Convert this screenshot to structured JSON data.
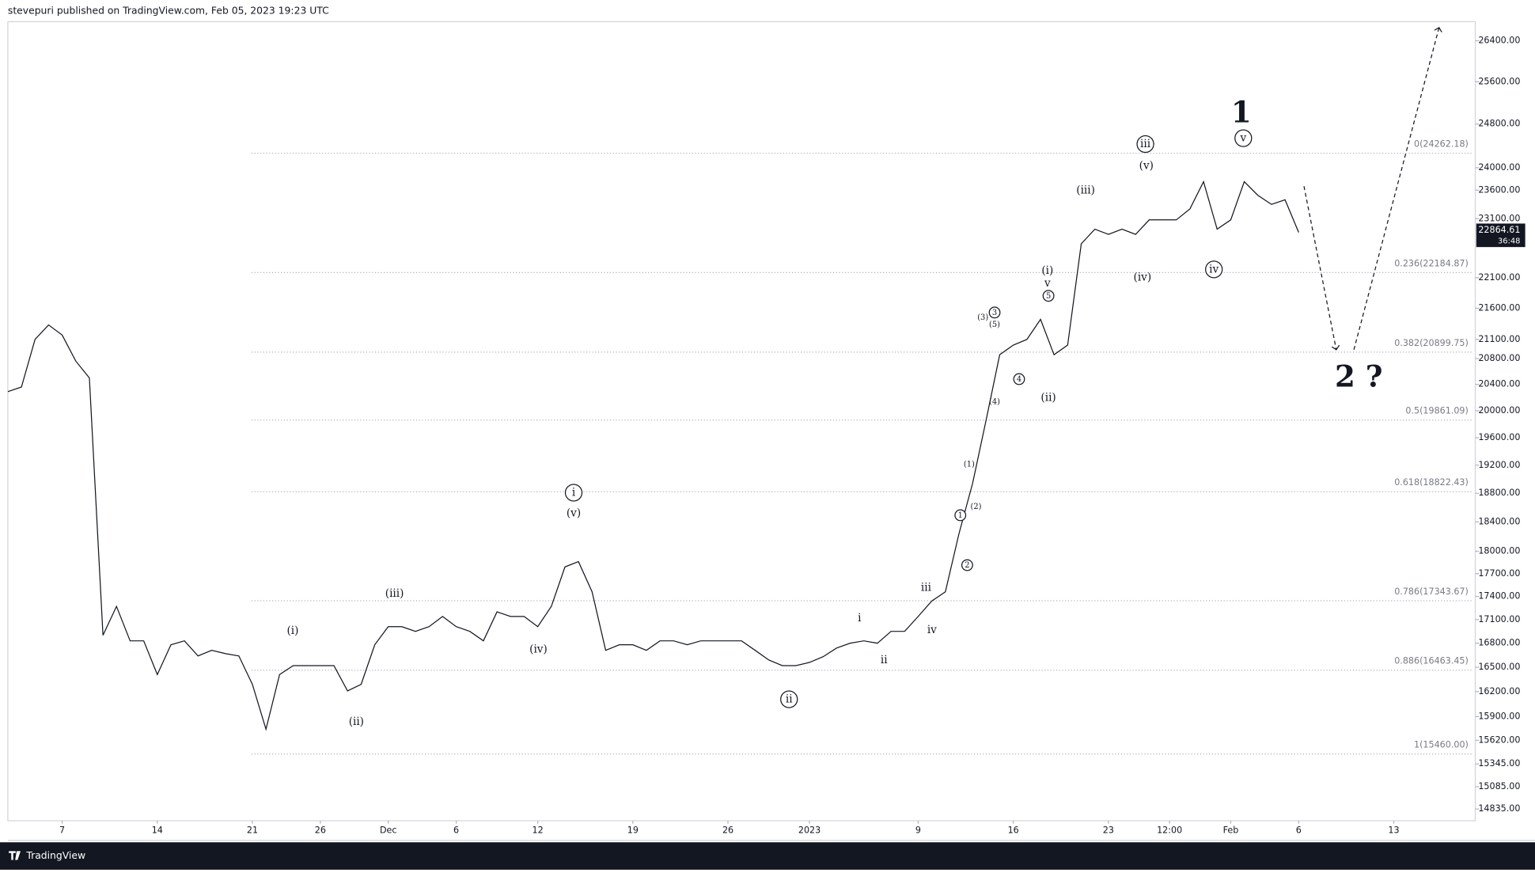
{
  "chart_data": {
    "type": "line",
    "title": "stevepuri published on TradingView.com, Feb 05, 2023 19:23 UTC",
    "source": "TradingView",
    "color": "#131722",
    "log_scale": true,
    "x": [
      -4,
      -3,
      -2,
      -1,
      0,
      1,
      2,
      3,
      4,
      5,
      6,
      7,
      8,
      9,
      10,
      11,
      12,
      13,
      14,
      15,
      16,
      17,
      18,
      19,
      20,
      21,
      22,
      23,
      24,
      25,
      26,
      27,
      28,
      29,
      30,
      31,
      32,
      33,
      34,
      35,
      36,
      37,
      38,
      39,
      40,
      41,
      42,
      43,
      44,
      45,
      46,
      47,
      48,
      49,
      50,
      51,
      52,
      53,
      54,
      55,
      56,
      57,
      58,
      59,
      60,
      61,
      62,
      63,
      64,
      65,
      66,
      67,
      68,
      69,
      70,
      71,
      72,
      73,
      74,
      75,
      76,
      77,
      78,
      79,
      80,
      81,
      82,
      83,
      84,
      85,
      86,
      87,
      88,
      89,
      90,
      91
    ],
    "values": [
      20290,
      20360,
      21100,
      21330,
      21170,
      20760,
      20500,
      16900,
      17270,
      16830,
      16830,
      16410,
      16780,
      16830,
      16640,
      16710,
      16670,
      16640,
      16290,
      15750,
      16410,
      16520,
      16520,
      16520,
      16520,
      16210,
      16290,
      16780,
      17010,
      17010,
      16950,
      17010,
      17140,
      17010,
      16950,
      16830,
      17200,
      17140,
      17140,
      17010,
      17270,
      17790,
      17860,
      17460,
      16710,
      16780,
      16780,
      16710,
      16830,
      16830,
      16780,
      16830,
      16830,
      16830,
      16830,
      16710,
      16590,
      16520,
      16520,
      16560,
      16630,
      16740,
      16800,
      16830,
      16800,
      16950,
      16950,
      17140,
      17340,
      17460,
      18240,
      18940,
      19860,
      20860,
      21010,
      21100,
      21420,
      20860,
      21010,
      22670,
      22920,
      22830,
      22920,
      22830,
      23080,
      23080,
      23080,
      23270,
      23750,
      22920,
      23080,
      23750,
      23510,
      23350,
      23430,
      22864.61
    ],
    "xlim": [
      -4,
      104
    ],
    "xticks": [
      {
        "value": 0,
        "label": "7"
      },
      {
        "value": 7,
        "label": "14"
      },
      {
        "value": 14,
        "label": "21"
      },
      {
        "value": 19,
        "label": "26"
      },
      {
        "value": 24,
        "label": "Dec"
      },
      {
        "value": 29,
        "label": "6"
      },
      {
        "value": 35,
        "label": "12"
      },
      {
        "value": 42,
        "label": "19"
      },
      {
        "value": 49,
        "label": "26"
      },
      {
        "value": 55,
        "label": "2023"
      },
      {
        "value": 63,
        "label": "9"
      },
      {
        "value": 70,
        "label": "16"
      },
      {
        "value": 77,
        "label": "23"
      },
      {
        "value": 81.5,
        "label": "12:00"
      },
      {
        "value": 86,
        "label": "Feb"
      },
      {
        "value": 91,
        "label": "6"
      },
      {
        "value": 98,
        "label": "13"
      }
    ],
    "ylim": [
      14705,
      26780
    ],
    "yticks": [
      {
        "value": 26400,
        "label": "26400.00"
      },
      {
        "value": 25600,
        "label": "25600.00"
      },
      {
        "value": 24800,
        "label": "24800.00"
      },
      {
        "value": 24000,
        "label": "24000.00"
      },
      {
        "value": 23600,
        "label": "23600.00"
      },
      {
        "value": 23100,
        "label": "23100.00"
      },
      {
        "value": 22100,
        "label": "22100.00"
      },
      {
        "value": 21600,
        "label": "21600.00"
      },
      {
        "value": 21100,
        "label": "21100.00"
      },
      {
        "value": 20800,
        "label": "20800.00"
      },
      {
        "value": 20400,
        "label": "20400.00"
      },
      {
        "value": 20000,
        "label": "20000.00"
      },
      {
        "value": 19600,
        "label": "19600.00"
      },
      {
        "value": 19200,
        "label": "19200.00"
      },
      {
        "value": 18800,
        "label": "18800.00"
      },
      {
        "value": 18400,
        "label": "18400.00"
      },
      {
        "value": 18000,
        "label": "18000.00"
      },
      {
        "value": 17700,
        "label": "17700.00"
      },
      {
        "value": 17400,
        "label": "17400.00"
      },
      {
        "value": 17100,
        "label": "17100.00"
      },
      {
        "value": 16800,
        "label": "16800.00"
      },
      {
        "value": 16500,
        "label": "16500.00"
      },
      {
        "value": 16200,
        "label": "16200.00"
      },
      {
        "value": 15900,
        "label": "15900.00"
      },
      {
        "value": 15620,
        "label": "15620.00"
      },
      {
        "value": 15345,
        "label": "15345.00"
      },
      {
        "value": 15085,
        "label": "15085.00"
      },
      {
        "value": 14835,
        "label": "14835.00"
      }
    ],
    "fib_levels": [
      {
        "value": 24262.18,
        "label": "0(24262.18)"
      },
      {
        "value": 22184.87,
        "label": "0.236(22184.87)"
      },
      {
        "value": 20899.75,
        "label": "0.382(20899.75)"
      },
      {
        "value": 19861.09,
        "label": "0.5(19861.09)"
      },
      {
        "value": 18822.43,
        "label": "0.618(18822.43)"
      },
      {
        "value": 17343.67,
        "label": "0.786(17343.67)"
      },
      {
        "value": 16463.45,
        "label": "0.886(16463.45)"
      },
      {
        "value": 15460.0,
        "label": "1(15460.00)"
      }
    ],
    "last_price": 22864.61,
    "countdown": "36:48",
    "annotations": [
      "(i)",
      "(ii)",
      "(iii)",
      "(iv)",
      "(v)",
      "i",
      "ii",
      "i",
      "ii",
      "iii",
      "iv",
      "1",
      "2",
      "(1)",
      "(2)",
      "(3)",
      "3",
      "(5)",
      "(4)",
      "4",
      "5",
      "v",
      "(i)",
      "(ii)",
      "(iii)",
      "(iv)",
      "(v)",
      "iii",
      "iv",
      "v",
      "1",
      "2 ?"
    ]
  }
}
